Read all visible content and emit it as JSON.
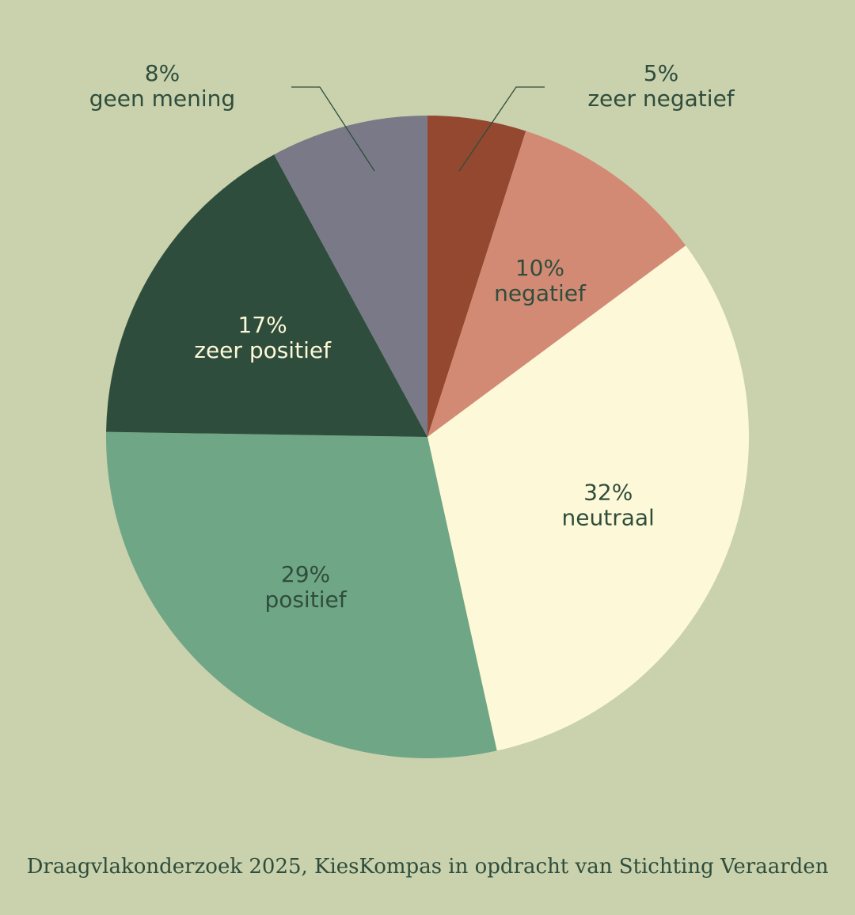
{
  "chart_data": {
    "type": "pie",
    "start_angle_deg": 0,
    "direction": "clockwise",
    "slices": [
      {
        "pct_label": "5%",
        "label": "zeer negatief",
        "value": 5,
        "color": "#954830",
        "text_color": "#2f4d3c",
        "label_placement": "outside"
      },
      {
        "pct_label": "10%",
        "label": "negatief",
        "value": 10,
        "color": "#d38a74",
        "text_color": "#2f4d3c",
        "label_placement": "inside"
      },
      {
        "pct_label": "32%",
        "label": "neutraal",
        "value": 32,
        "color": "#fdf9d8",
        "text_color": "#2f4d3c",
        "label_placement": "inside"
      },
      {
        "pct_label": "29%",
        "label": "positief",
        "value": 29,
        "color": "#6fa686",
        "text_color": "#2f4d3c",
        "label_placement": "inside"
      },
      {
        "pct_label": "17%",
        "label": "zeer positief",
        "value": 17,
        "color": "#2f4d3c",
        "text_color": "#fdf9d8",
        "label_placement": "inside"
      },
      {
        "pct_label": "8%",
        "label": "geen mening",
        "value": 8,
        "color": "#7a7987",
        "text_color": "#2f4d3c",
        "label_placement": "outside"
      }
    ]
  },
  "source_text": "Draagvlakonderzoek 2025, KiesKompas in opdracht van Stichting Veraarden",
  "colors": {
    "background": "#c9d2ad",
    "text": "#2f4d3c",
    "leader_line": "#2f4d3c"
  }
}
